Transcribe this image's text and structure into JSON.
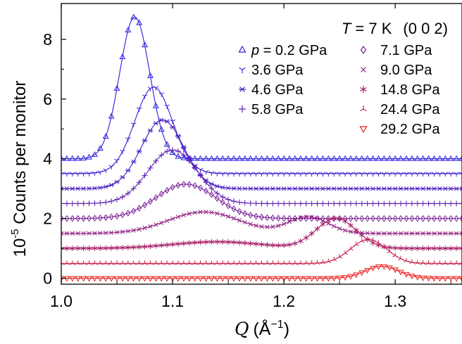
{
  "chart_data": {
    "type": "line",
    "xlabel_symbol": "Q",
    "xlabel_unit": "(Å",
    "xlabel_exp": "−1",
    "xlabel_close": ")",
    "ylabel_prefix": "10",
    "ylabel_exp": "-5",
    "ylabel_rest": " Counts per monitor",
    "xlim": [
      1.0,
      1.36
    ],
    "ylim": [
      -0.2,
      9.2
    ],
    "xticks": [
      "1.0",
      "1.1",
      "1.2",
      "1.3"
    ],
    "xtick_values": [
      1.0,
      1.1,
      1.2,
      1.3
    ],
    "yticks": [
      "0",
      "2",
      "4",
      "6",
      "8"
    ],
    "ytick_values": [
      0,
      2,
      4,
      6,
      8
    ],
    "annotation": {
      "t_symbol": "T",
      "t_value": " = 7 K",
      "reflection": "(0 0 2)"
    },
    "legend_position": "top-right",
    "series": [
      {
        "name": "p = 0.2 GPa",
        "symbol": "p",
        "label_rest": " = 0.2 GPa",
        "label": "p = 0.2 GPa",
        "marker": "triangle-up",
        "color": "#2a1ee0",
        "offset": 4.0,
        "peaks": [
          {
            "center": 1.066,
            "amplitude": 4.75,
            "width": 0.0135
          }
        ]
      },
      {
        "name": "3.6 GPa",
        "label": "3.6 GPa",
        "marker": "tri-down",
        "color": "#3a1ed4",
        "offset": 3.5,
        "peaks": [
          {
            "center": 1.083,
            "amplitude": 2.9,
            "width": 0.017
          }
        ]
      },
      {
        "name": "4.6 GPa",
        "label": "4.6 GPa",
        "marker": "asterisk",
        "color": "#4a1ec4",
        "offset": 3.0,
        "peaks": [
          {
            "center": 1.091,
            "amplitude": 2.3,
            "width": 0.019
          }
        ]
      },
      {
        "name": "5.8 GPa",
        "label": "5.8 GPa",
        "marker": "plus",
        "color": "#5c1eb0",
        "offset": 2.5,
        "peaks": [
          {
            "center": 1.1,
            "amplitude": 1.8,
            "width": 0.022
          }
        ]
      },
      {
        "name": "7.1 GPa",
        "label": "7.1 GPa",
        "marker": "diamond",
        "color": "#7a1e98",
        "offset": 2.0,
        "peaks": [
          {
            "center": 1.112,
            "amplitude": 1.15,
            "width": 0.027
          }
        ]
      },
      {
        "name": "9.0 GPa",
        "label": "9.0 GPa",
        "marker": "cross",
        "color": "#8e1e80",
        "offset": 1.5,
        "peaks": [
          {
            "center": 1.128,
            "amplitude": 0.72,
            "width": 0.032
          },
          {
            "center": 1.222,
            "amplitude": 0.55,
            "width": 0.018
          }
        ]
      },
      {
        "name": "14.8 GPa",
        "label": "14.8 GPa",
        "marker": "star",
        "color": "#a61e66",
        "offset": 1.0,
        "peaks": [
          {
            "center": 1.14,
            "amplitude": 0.22,
            "width": 0.04
          },
          {
            "center": 1.247,
            "amplitude": 1.0,
            "width": 0.018
          }
        ]
      },
      {
        "name": "24.4 GPa",
        "label": "24.4 GPa",
        "marker": "tri-up",
        "color": "#c81e4a",
        "offset": 0.5,
        "peaks": [
          {
            "center": 1.276,
            "amplitude": 0.8,
            "width": 0.016
          }
        ]
      },
      {
        "name": "29.2 GPa",
        "label": "29.2 GPa",
        "marker": "triangle-down",
        "color": "#e81e1e",
        "offset": 0.0,
        "peaks": [
          {
            "center": 1.288,
            "amplitude": 0.4,
            "width": 0.015
          }
        ]
      }
    ],
    "x_sample_step": 0.005
  }
}
